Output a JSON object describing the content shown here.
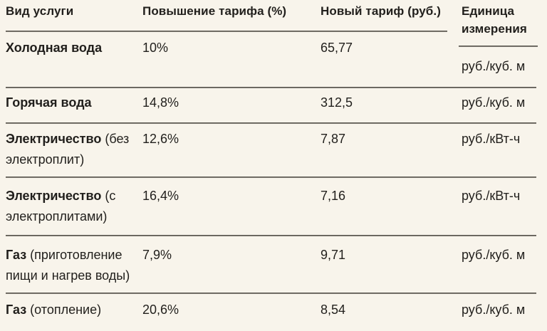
{
  "colors": {
    "background": "#f8f4eb",
    "text": "#211f1c",
    "rule": "#45423c"
  },
  "chart_data": {
    "type": "table",
    "title": "",
    "columns": [
      "Вид услуги",
      "Повышение тарифа (%)",
      "Новый тариф (руб.)",
      "Единица измерения"
    ],
    "rows": [
      {
        "service": "Холодная вода",
        "note": "",
        "increase": "10%",
        "new_tariff": "65,77",
        "unit": "руб./куб. м"
      },
      {
        "service": "Горячая вода",
        "note": "",
        "increase": "14,8%",
        "new_tariff": "312,5",
        "unit": "руб./куб. м"
      },
      {
        "service": "Электричество",
        "note": "(без электроплит)",
        "increase": "12,6%",
        "new_tariff": "7,87",
        "unit": "руб./кВт-ч"
      },
      {
        "service": "Электричество",
        "note": "(с электроплитами)",
        "increase": "16,4%",
        "new_tariff": "7,16",
        "unit": "руб./кВт-ч"
      },
      {
        "service": "Газ",
        "note": "(приготовление пищи и нагрев воды)",
        "increase": "7,9%",
        "new_tariff": "9,71",
        "unit": "руб./куб. м"
      },
      {
        "service": "Газ",
        "note": "(отопление)",
        "increase": "20,6%",
        "new_tariff": "8,54",
        "unit": "руб./куб. м"
      }
    ]
  }
}
